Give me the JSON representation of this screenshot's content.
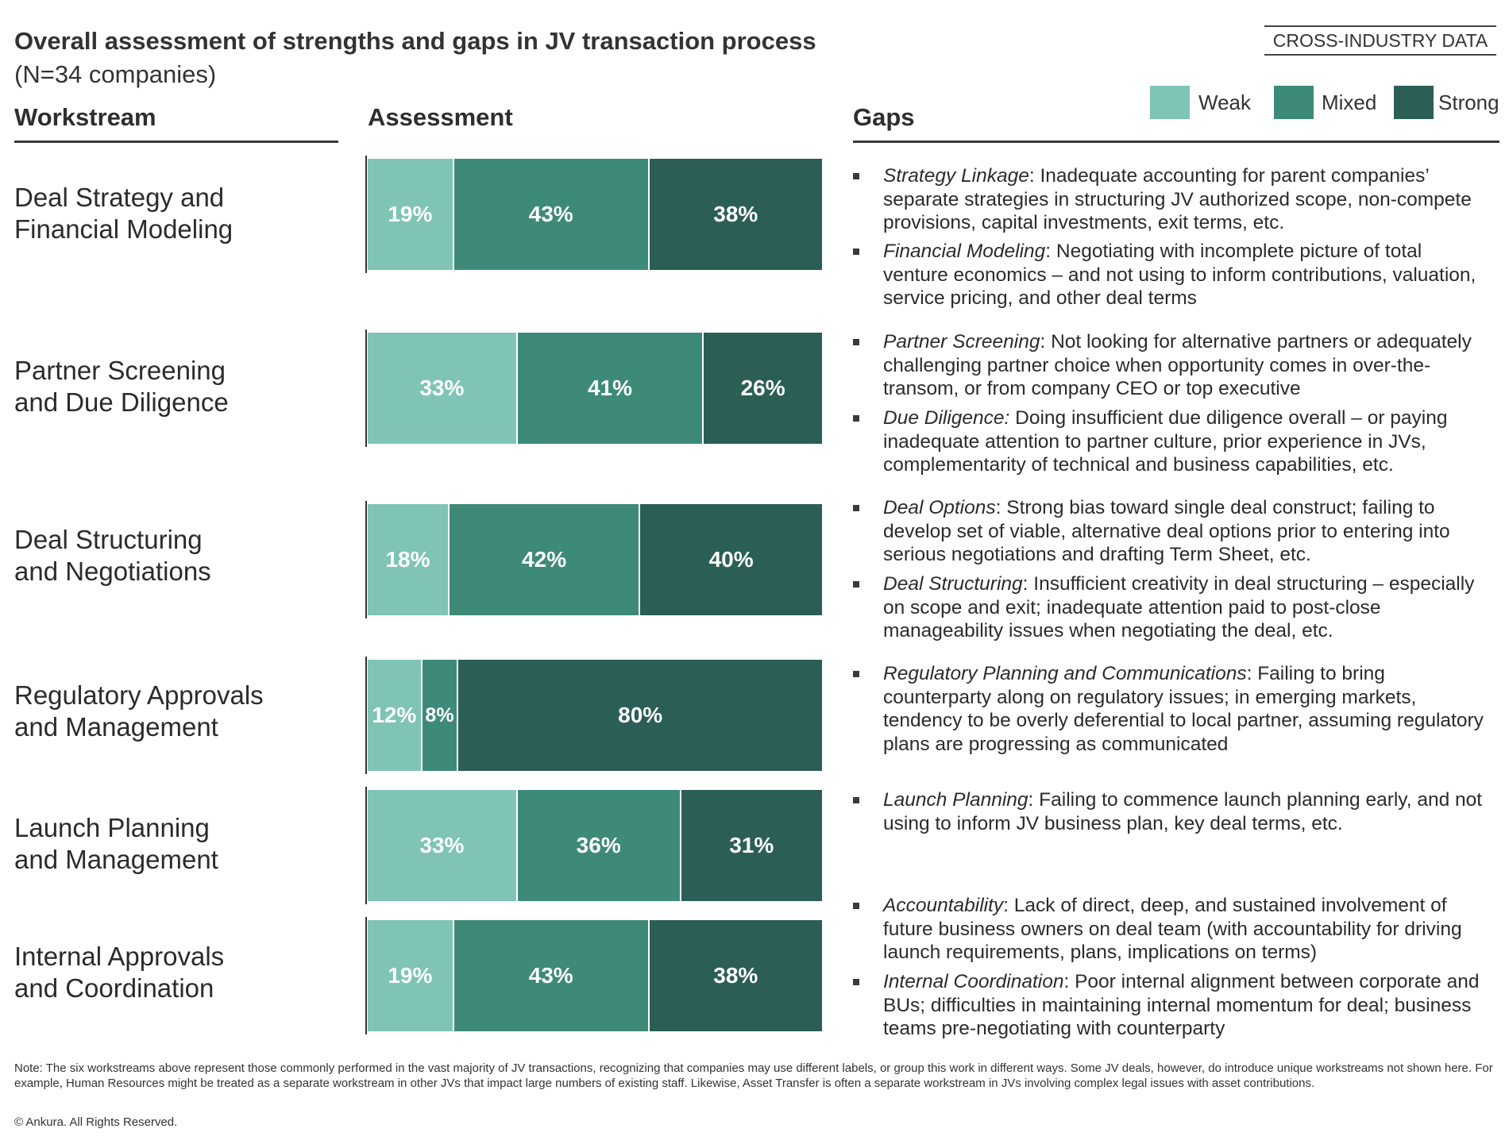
{
  "header": {
    "title": "Overall assessment of strengths and gaps in JV transaction process",
    "subtitle": "(N=34 companies)",
    "badge": "CROSS-INDUSTRY DATA"
  },
  "columns": {
    "workstream": "Workstream",
    "assessment": "Assessment",
    "gaps": "Gaps"
  },
  "colors": {
    "weak": "#7fc4b5",
    "mixed": "#3e8a78",
    "strong": "#2b5e55"
  },
  "chart_data": {
    "type": "bar",
    "stacked": true,
    "orientation": "horizontal",
    "unit": "%",
    "categories": [
      "Deal Strategy and Financial Modeling",
      "Partner Screening and Due Diligence",
      "Deal Structuring and Negotiations",
      "Regulatory Approvals and Management",
      "Launch Planning and Management",
      "Internal Approvals and Coordination"
    ],
    "series": [
      {
        "name": "Weak",
        "values": [
          19,
          33,
          18,
          12,
          33,
          19
        ],
        "color": "#7fc4b5"
      },
      {
        "name": "Mixed",
        "values": [
          43,
          41,
          42,
          8,
          36,
          43
        ],
        "color": "#3e8a78"
      },
      {
        "name": "Strong",
        "values": [
          38,
          26,
          40,
          80,
          31,
          38
        ],
        "color": "#2b5e55"
      }
    ],
    "xlim": [
      0,
      100
    ],
    "legend_position": "top-right",
    "grid": false
  },
  "workstreams": [
    {
      "line1": "Deal Strategy and",
      "line2": "Financial Modeling"
    },
    {
      "line1": "Partner Screening",
      "line2": "and Due Diligence"
    },
    {
      "line1": "Deal Structuring",
      "line2": "and Negotiations"
    },
    {
      "line1": "Regulatory Approvals",
      "line2": "and Management"
    },
    {
      "line1": "Launch Planning",
      "line2": "and Management"
    },
    {
      "line1": "Internal Approvals",
      "line2": "and Coordination"
    }
  ],
  "gaps": [
    {
      "term": "Strategy Linkage",
      "text": ": Inadequate accounting for parent companies’ separate strategies in structuring JV authorized scope, non-compete provisions, capital investments, exit terms, etc."
    },
    {
      "term": "Financial Modeling",
      "text": ": Negotiating with incomplete picture of total venture economics – and not using to inform contributions, valuation, service pricing, and other deal terms"
    },
    {
      "term": "Partner Screening",
      "text": ": Not looking for alternative partners or adequately challenging partner choice when opportunity comes in over-the-transom, or from company CEO or top executive"
    },
    {
      "term": "Due Diligence:",
      "text": " Doing insufficient due diligence overall – or paying inadequate attention to partner culture, prior experience in JVs, complementarity of technical and business capabilities, etc."
    },
    {
      "term": "Deal Options",
      "text": ": Strong bias toward single deal construct; failing to develop set of viable, alternative deal options prior to entering into serious negotiations and drafting Term Sheet, etc."
    },
    {
      "term": "Deal Structuring",
      "text": ": Insufficient creativity in deal structuring – especially on scope and exit; inadequate attention paid to post-close manageability issues when negotiating the deal, etc."
    },
    {
      "term": "Regulatory Planning and Communications",
      "text": ": Failing to bring counterparty along on regulatory issues; in emerging markets, tendency to be overly deferential to local partner, assuming regulatory plans are progressing as communicated"
    },
    {
      "term": "Launch Planning",
      "text": ": Failing to commence launch planning early, and not using to inform JV business plan, key deal terms, etc."
    },
    {
      "term": "Accountability",
      "text": ": Lack of direct, deep, and sustained involvement of future business owners on deal team (with accountability for driving launch requirements, plans, implications on terms)"
    },
    {
      "term": "Internal Coordination",
      "text": ": Poor internal alignment between corporate and BUs; difficulties in maintaining internal momentum for deal; business teams pre-negotiating with counterparty"
    }
  ],
  "footer": {
    "note": "Note: The six workstreams above represent those commonly performed in the vast majority of JV transactions, recognizing that companies may use different labels, or group this work in different ways. Some JV deals, however, do introduce unique workstreams not shown here. For example, Human Resources might be treated as a separate workstream in other JVs that impact large numbers of existing staff. Likewise, Asset Transfer is often a separate workstream in JVs involving complex legal issues with asset contributions.",
    "copyright": "© Ankura. All Rights Reserved."
  }
}
